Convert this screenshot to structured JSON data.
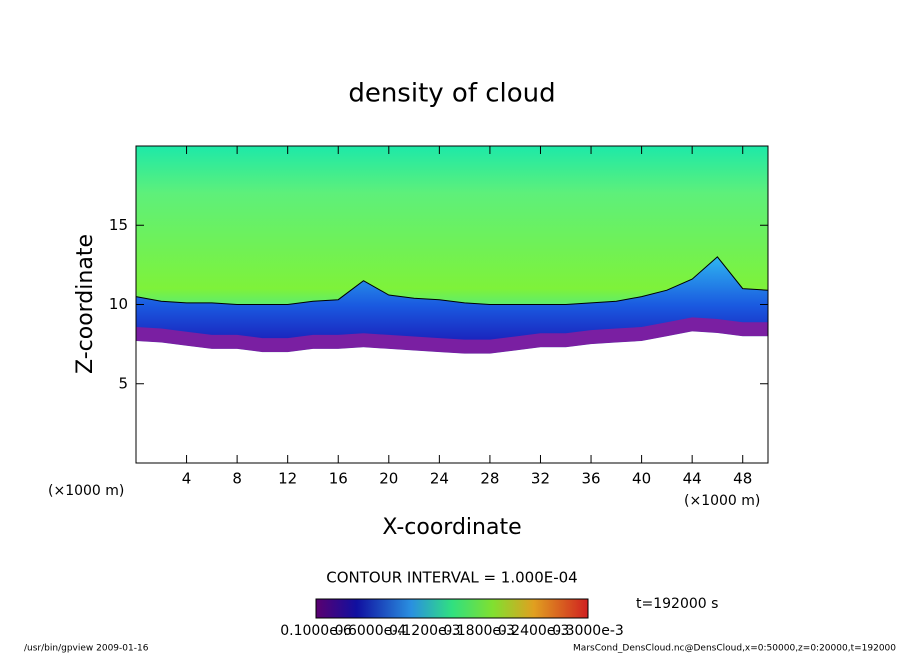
{
  "chart_data": {
    "type": "contour",
    "title": "density of cloud",
    "x_label": "X-coordinate",
    "y_label": "Z-coordinate",
    "x_unit_labels": [
      "(×1000 m)",
      "(×1000 m)"
    ],
    "xlim": [
      0,
      50
    ],
    "ylim": [
      0,
      20
    ],
    "xticks": [
      4,
      8,
      12,
      16,
      20,
      24,
      28,
      32,
      36,
      40,
      44,
      48
    ],
    "yticks": [
      5,
      10,
      15
    ],
    "x": [
      0,
      2,
      4,
      6,
      8,
      10,
      12,
      14,
      16,
      18,
      20,
      22,
      24,
      26,
      28,
      30,
      32,
      34,
      36,
      38,
      40,
      42,
      44,
      46,
      48,
      50
    ],
    "series": [
      {
        "color": "#7a1fa2",
        "values": [
          7.7,
          7.6,
          7.4,
          7.2,
          7.2,
          7.0,
          7.0,
          7.2,
          7.2,
          7.3,
          7.2,
          7.1,
          7.0,
          6.9,
          6.9,
          7.1,
          7.3,
          7.3,
          7.5,
          7.6,
          7.7,
          8.0,
          8.3,
          8.2,
          8.0,
          8.0
        ]
      },
      {
        "color": "#000000",
        "values": [
          10.5,
          10.2,
          10.1,
          10.1,
          10.0,
          10.0,
          10.0,
          10.2,
          10.3,
          11.5,
          10.6,
          10.4,
          10.3,
          10.1,
          10.0,
          10.0,
          10.0,
          10.0,
          10.1,
          10.2,
          10.5,
          10.9,
          11.6,
          13.0,
          11.0,
          10.9
        ]
      }
    ],
    "contour_interval": "CONTOUR INTERVAL = 1.000E-04",
    "colorbar_labels": [
      "0.1000e-6",
      "0.6000e-4",
      "0.1200e-3",
      "0.1800e-3",
      "0.2400e-3",
      "0.3000e-3"
    ],
    "time_label": "t=192000 s",
    "footer_left": "/usr/bin/gpview  2009-01-16",
    "footer_right": "MarsCond_DensCloud.nc@DensCloud,x=0:50000,z=0:20000,t=192000"
  }
}
